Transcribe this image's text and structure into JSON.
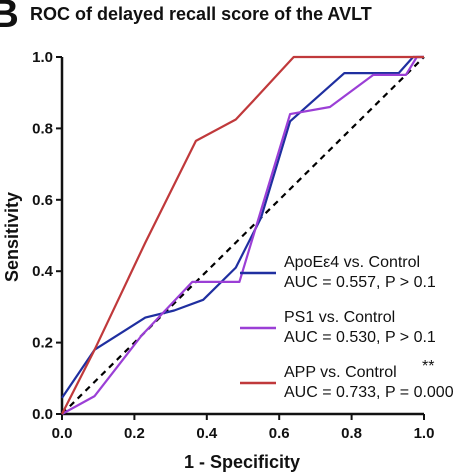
{
  "panel_label": "B",
  "chart_data": {
    "type": "line",
    "title": "ROC of delayed recall score of the AVLT",
    "xlabel": "1 - Specificity",
    "ylabel": "Sensitivity",
    "xlim": [
      0.0,
      1.0
    ],
    "ylim": [
      0.0,
      1.0
    ],
    "x_ticks": [
      "0.0",
      "0.2",
      "0.4",
      "0.6",
      "0.8",
      "1.0"
    ],
    "y_ticks": [
      "0.0",
      "0.2",
      "0.4",
      "0.6",
      "0.8",
      "1.0"
    ],
    "grid": false,
    "legend_position": "bottom-right",
    "reference_line": {
      "style": "dashed",
      "color": "#000000",
      "points": [
        [
          0,
          0
        ],
        [
          1,
          1
        ]
      ]
    },
    "series": [
      {
        "name": "ApoEε4 vs. Control",
        "auc_text": "AUC = 0.557, P > 0.1",
        "significance": "",
        "color": "#1f2fa0",
        "points": [
          [
            0,
            0.045
          ],
          [
            0.09,
            0.18
          ],
          [
            0.23,
            0.27
          ],
          [
            0.31,
            0.29
          ],
          [
            0.39,
            0.32
          ],
          [
            0.48,
            0.41
          ],
          [
            0.55,
            0.55
          ],
          [
            0.63,
            0.82
          ],
          [
            0.78,
            0.955
          ],
          [
            0.93,
            0.955
          ],
          [
            0.97,
            1.0
          ],
          [
            1.0,
            1.0
          ]
        ]
      },
      {
        "name": "PS1 vs. Control",
        "auc_text": "AUC = 0.530, P > 0.1",
        "significance": "",
        "color": "#9b3fd6",
        "points": [
          [
            0,
            0.0
          ],
          [
            0.09,
            0.05
          ],
          [
            0.22,
            0.22
          ],
          [
            0.36,
            0.37
          ],
          [
            0.49,
            0.37
          ],
          [
            0.63,
            0.84
          ],
          [
            0.74,
            0.86
          ],
          [
            0.78,
            0.89
          ],
          [
            0.86,
            0.95
          ],
          [
            0.95,
            0.95
          ],
          [
            0.98,
            1.0
          ],
          [
            1.0,
            1.0
          ]
        ]
      },
      {
        "name": "APP vs. Control",
        "auc_text": "AUC = 0.733, P = 0.000",
        "significance": "**",
        "color": "#c0393b",
        "points": [
          [
            0,
            0.0
          ],
          [
            0.09,
            0.18
          ],
          [
            0.23,
            0.48
          ],
          [
            0.37,
            0.765
          ],
          [
            0.48,
            0.825
          ],
          [
            0.54,
            0.89
          ],
          [
            0.64,
            1.0
          ],
          [
            1.0,
            1.0
          ]
        ]
      }
    ]
  }
}
